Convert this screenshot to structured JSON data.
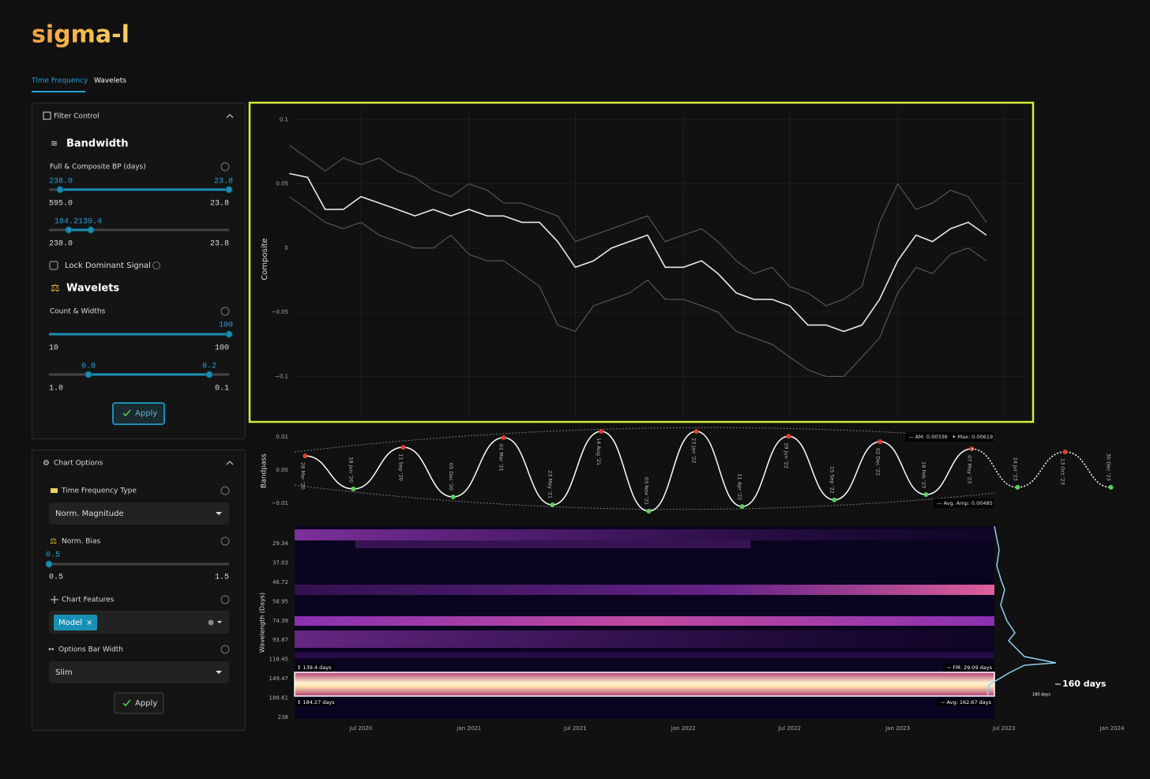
{
  "header": {
    "logo": "sigma-l",
    "tabs": [
      "Time Frequency",
      "Wavelets"
    ]
  },
  "filter_control": {
    "title": "Filter Control",
    "bandwidth_title": "Bandwidth",
    "bp_label": "Full & Composite BP (days)",
    "slider_a": {
      "low": "238.0",
      "high": "23.8",
      "min": "595.0",
      "max": "23.8"
    },
    "slider_b": {
      "low": "184.2",
      "high": "139.4",
      "min": "238.0",
      "max": "23.8"
    },
    "lock_label": "Lock Dominant Signal",
    "wavelets_title": "Wavelets",
    "count_label": "Count & Widths",
    "slider_c": {
      "value": "100",
      "min": "10",
      "max": "100"
    },
    "slider_d": {
      "low": "0.8",
      "high": "0.2",
      "min": "1.0",
      "max": "0.1"
    },
    "apply": "Apply"
  },
  "chart_options": {
    "title": "Chart Options",
    "tf_type_label": "Time Frequency Type",
    "tf_type_value": "Norm. Magnitude",
    "bias_label": "Norm. Bias",
    "bias_slider": {
      "value": "0.5",
      "min": "0.5",
      "max": "1.5"
    },
    "features_label": "Chart Features",
    "features_chip": "Model",
    "bar_width_label": "Options Bar Width",
    "bar_width_value": "Slim",
    "apply": "Apply"
  },
  "chart_data": [
    {
      "type": "line",
      "ylabel": "Composite",
      "ylim": [
        -0.133,
        0.107
      ],
      "yticks": [
        0.1,
        0.05,
        0,
        {
          "value": -0.05,
          "label": "−0.05"
        },
        {
          "value": -0.1,
          "label": "−0.1"
        }
      ],
      "grid": true,
      "x": [
        "2020-03",
        "2020-04",
        "2020-05",
        "2020-06",
        "2020-07",
        "2020-08",
        "2020-09",
        "2020-10",
        "2020-11",
        "2020-12",
        "2021-01",
        "2021-02",
        "2021-03",
        "2021-04",
        "2021-05",
        "2021-06",
        "2021-07",
        "2021-08",
        "2021-09",
        "2021-10",
        "2021-11",
        "2021-12",
        "2022-01",
        "2022-02",
        "2022-03",
        "2022-04",
        "2022-05",
        "2022-06",
        "2022-07",
        "2022-08",
        "2022-09",
        "2022-10",
        "2022-11",
        "2022-12",
        "2023-01",
        "2023-02",
        "2023-03",
        "2023-04",
        "2023-05",
        "2023-06"
      ],
      "series": [
        {
          "color": "#5a5a5a",
          "values": [
            0.08,
            0.07,
            0.06,
            0.07,
            0.065,
            0.07,
            0.06,
            0.055,
            0.045,
            0.04,
            0.05,
            0.045,
            0.035,
            0.035,
            0.03,
            0.025,
            0.005,
            0.01,
            0.015,
            0.02,
            0.025,
            0.005,
            0.01,
            0.015,
            0.005,
            -0.01,
            -0.02,
            -0.015,
            -0.03,
            -0.035,
            -0.045,
            -0.04,
            -0.03,
            0.02,
            0.05,
            0.03,
            0.035,
            0.045,
            0.04,
            0.02
          ]
        },
        {
          "color": "#5a5a5a",
          "values": [
            0.04,
            0.03,
            0.02,
            0.015,
            0.02,
            0.01,
            0.005,
            0,
            0,
            0.01,
            -0.005,
            -0.01,
            -0.01,
            -0.02,
            -0.03,
            -0.06,
            -0.065,
            -0.045,
            -0.04,
            -0.035,
            -0.025,
            -0.04,
            -0.04,
            -0.045,
            -0.05,
            -0.065,
            -0.07,
            -0.075,
            -0.085,
            -0.095,
            -0.1,
            -0.1,
            -0.085,
            -0.07,
            -0.035,
            -0.015,
            -0.02,
            -0.005,
            0,
            -0.01
          ]
        },
        {
          "color": "#e8e8e8",
          "values": [
            0.058,
            0.055,
            0.03,
            0.03,
            0.04,
            0.035,
            0.03,
            0.025,
            0.03,
            0.025,
            0.03,
            0.025,
            0.025,
            0.02,
            0.02,
            0.005,
            -0.015,
            -0.01,
            0,
            0.005,
            0.01,
            -0.015,
            -0.015,
            -0.01,
            -0.02,
            -0.035,
            -0.04,
            -0.04,
            -0.045,
            -0.06,
            -0.06,
            -0.065,
            -0.06,
            -0.04,
            -0.01,
            0.01,
            0.005,
            0.015,
            0.02,
            0.01
          ]
        }
      ]
    },
    {
      "type": "wave",
      "ylabel": "Bandpass",
      "ylim": [
        -0.0136,
        0.0136
      ],
      "yticks": [
        0.01,
        {
          "value": 0,
          "label": "0.00"
        },
        {
          "value": -0.01,
          "label": "−0.01"
        }
      ],
      "peak_color": "#e0402e",
      "trough_color": "#5ad05a",
      "series": [
        {
          "color": "#ffffff",
          "dashed": false,
          "x": [
            "2020-03-28",
            "2020-06-18",
            "2020-09-11",
            "2020-12-05",
            "2021-03-01",
            "2021-05-23",
            "2021-08-14",
            "2021-11-03",
            "2022-01-23",
            "2022-04-11",
            "2022-06-29",
            "2022-09-15",
            "2022-12-02",
            "2023-02-18",
            "2023-05-07"
          ],
          "point_labels": [
            "28 Mar '20",
            "18 Jun '20",
            "11 Sep '20",
            "05 Dec '20",
            "01 Mar '21",
            "23 May '21",
            "14 Aug '21",
            "03 Nov '21",
            "23 Jan '22",
            "11 Apr '22",
            "29 Jun '22",
            "15 Sep '22",
            "02 Dec '22",
            "18 Feb '23",
            "07 May '23"
          ],
          "values": [
            0.0043,
            -0.0057,
            0.0069,
            -0.0081,
            0.0098,
            -0.0105,
            0.0117,
            -0.0124,
            0.0117,
            -0.011,
            0.0102,
            -0.009,
            0.0086,
            -0.0074,
            0.0064
          ]
        },
        {
          "color": "#ffffff",
          "dashed": true,
          "x": [
            "2023-07-24",
            "2023-10-13",
            "2023-12-30"
          ],
          "point_labels": [
            "24 Jul '23",
            "13 Oct '23",
            "30 Dec '23"
          ],
          "values": [
            -0.0052,
            0.0055,
            -0.0052
          ]
        }
      ],
      "annotations": [
        "— AM: 0.00336",
        "✶ Max: 0.00619",
        "— Avg. Amp: 0.00485"
      ]
    },
    {
      "type": "heatmap",
      "ylabel": "Wavelength (Days)",
      "log": true,
      "yreverse": true,
      "ylim": [
        23.8,
        238
      ],
      "yticks": [
        29.34,
        37.03,
        46.72,
        58.95,
        74.39,
        93.87,
        118.45,
        149.47,
        188.61,
        238
      ],
      "xlim": [
        "2020-03-10",
        "2024-02-13"
      ],
      "xticks": [
        {
          "value": "2020-07-01",
          "label": "Jul 2020"
        },
        {
          "value": "2021-01-01",
          "label": "Jan 2021"
        },
        {
          "value": "2021-07-01",
          "label": "Jul 2021"
        },
        {
          "value": "2022-01-01",
          "label": "Jan 2022"
        },
        {
          "value": "2022-07-01",
          "label": "Jul 2022"
        },
        {
          "value": "2023-01-01",
          "label": "Jan 2023"
        },
        {
          "value": "2023-07-01",
          "label": "Jul 2023"
        },
        {
          "value": "2024-01-01",
          "label": "Jan 2024"
        }
      ],
      "annotations": [
        "↕ 139.4 days",
        "↕ 184.27 days",
        "~ FM: 29.09 days",
        "~ Avg: 162.67 days",
        "160 days",
        "180 days"
      ]
    }
  ]
}
